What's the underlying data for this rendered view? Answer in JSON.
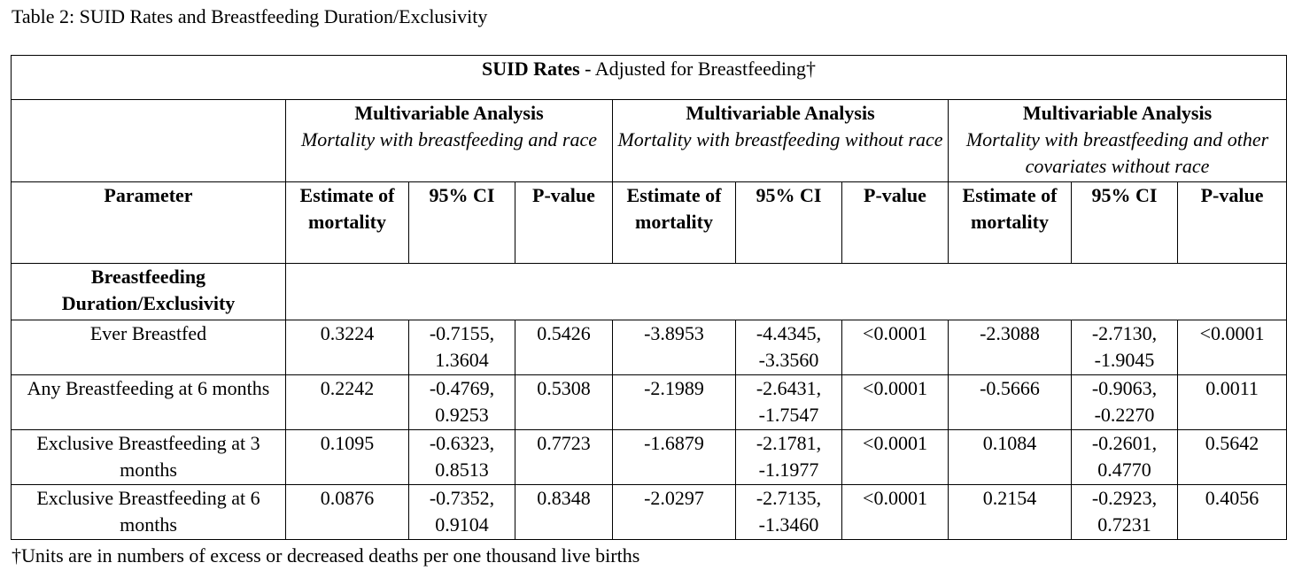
{
  "caption": "Table 2: SUID Rates and Breastfeeding Duration/Exclusivity",
  "table": {
    "title_bold": "SUID Rates",
    "title_rest": " - Adjusted for Breastfeeding†",
    "groups": [
      {
        "heading": "Multivariable Analysis",
        "subheading": "Mortality with breastfeeding and race"
      },
      {
        "heading": "Multivariable Analysis",
        "subheading": "Mortality with breastfeeding without race"
      },
      {
        "heading": "Multivariable Analysis",
        "subheading": "Mortality with breastfeeding and other covariates without race"
      }
    ],
    "columns": {
      "parameter": "Parameter",
      "estimate": "Estimate of mortality",
      "ci": "95% CI",
      "pvalue": "P-value"
    },
    "section": "Breastfeeding Duration/Exclusivity",
    "rows": [
      {
        "label": "Ever Breastfed",
        "values": [
          [
            "0.3224",
            "-0.7155, 1.3604",
            "0.5426"
          ],
          [
            "-3.8953",
            "-4.4345, -3.3560",
            "<0.0001"
          ],
          [
            "-2.3088",
            "-2.7130, -1.9045",
            "<0.0001"
          ]
        ]
      },
      {
        "label": "Any Breastfeeding at 6 months",
        "values": [
          [
            "0.2242",
            "-0.4769, 0.9253",
            "0.5308"
          ],
          [
            "-2.1989",
            "-2.6431, -1.7547",
            "<0.0001"
          ],
          [
            "-0.5666",
            "-0.9063, -0.2270",
            "0.0011"
          ]
        ]
      },
      {
        "label": "Exclusive Breastfeeding at 3 months",
        "values": [
          [
            "0.1095",
            "-0.6323, 0.8513",
            "0.7723"
          ],
          [
            "-1.6879",
            "-2.1781, -1.1977",
            "<0.0001"
          ],
          [
            "0.1084",
            "-0.2601, 0.4770",
            "0.5642"
          ]
        ]
      },
      {
        "label": "Exclusive Breastfeeding at 6 months",
        "values": [
          [
            "0.0876",
            "-0.7352, 0.9104",
            "0.8348"
          ],
          [
            "-2.0297",
            "-2.7135, -1.3460",
            "<0.0001"
          ],
          [
            "0.2154",
            "-0.2923, 0.7231",
            "0.4056"
          ]
        ]
      }
    ]
  },
  "footnote": "†Units are in numbers of excess or decreased deaths per one thousand live births"
}
